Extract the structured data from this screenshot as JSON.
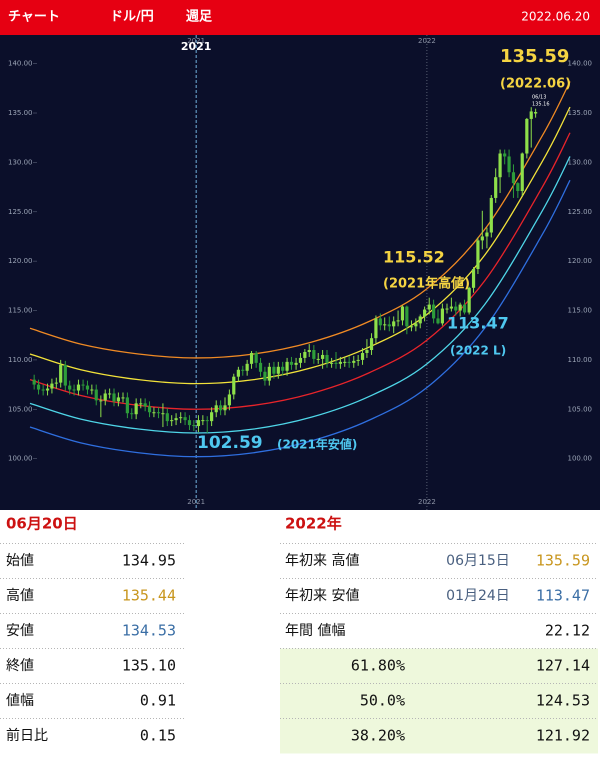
{
  "header": {
    "title": "チャート",
    "pair": "ドル/円",
    "period": "週足",
    "date": "2022.06.20"
  },
  "chart_data": {
    "type": "candlestick",
    "xlim": [
      2020.15,
      2022.75
    ],
    "ylim": [
      94.8,
      142.9
    ],
    "xticks": [
      2021,
      2022
    ],
    "yticks": [
      {
        "value": 100,
        "label": "100.00"
      },
      {
        "value": 105,
        "label": "105.00"
      },
      {
        "value": 110,
        "label": "110.00"
      },
      {
        "value": 115,
        "label": "115.00"
      },
      {
        "value": 120,
        "label": "120.00"
      },
      {
        "value": 125,
        "label": "125.00"
      },
      {
        "value": 130,
        "label": "130.00"
      },
      {
        "value": 135,
        "label": "135.00"
      },
      {
        "value": 140,
        "label": "140.00"
      }
    ],
    "up_color": "#8ee04a",
    "down_color": "#2e9d3a",
    "x": [
      2020.298,
      2020.317,
      2020.337,
      2020.356,
      2020.375,
      2020.394,
      2020.413,
      2020.433,
      2020.452,
      2020.471,
      2020.49,
      2020.51,
      2020.529,
      2020.548,
      2020.567,
      2020.587,
      2020.606,
      2020.625,
      2020.644,
      2020.663,
      2020.683,
      2020.702,
      2020.721,
      2020.74,
      2020.76,
      2020.779,
      2020.798,
      2020.817,
      2020.837,
      2020.856,
      2020.875,
      2020.894,
      2020.913,
      2020.933,
      2020.952,
      2020.971,
      2020.99,
      2021.01,
      2021.029,
      2021.048,
      2021.067,
      2021.087,
      2021.106,
      2021.125,
      2021.144,
      2021.163,
      2021.183,
      2021.202,
      2021.221,
      2021.24,
      2021.26,
      2021.279,
      2021.298,
      2021.317,
      2021.337,
      2021.356,
      2021.375,
      2021.394,
      2021.413,
      2021.433,
      2021.452,
      2021.471,
      2021.49,
      2021.51,
      2021.529,
      2021.548,
      2021.567,
      2021.587,
      2021.606,
      2021.625,
      2021.644,
      2021.663,
      2021.683,
      2021.702,
      2021.721,
      2021.74,
      2021.76,
      2021.779,
      2021.798,
      2021.817,
      2021.837,
      2021.856,
      2021.875,
      2021.894,
      2021.913,
      2021.933,
      2021.952,
      2021.971,
      2021.99,
      2022.01,
      2022.029,
      2022.048,
      2022.067,
      2022.087,
      2022.106,
      2022.125,
      2022.144,
      2022.163,
      2022.183,
      2022.202,
      2022.221,
      2022.24,
      2022.26,
      2022.279,
      2022.298,
      2022.317,
      2022.337,
      2022.356,
      2022.375,
      2022.394,
      2022.413,
      2022.433,
      2022.452,
      2022.471
    ],
    "open": [
      108.0,
      107.5,
      107.0,
      106.9,
      107.1,
      107.6,
      107.7,
      109.5,
      107.4,
      107.0,
      106.9,
      107.5,
      107.4,
      107.0,
      107.0,
      105.9,
      105.9,
      106.6,
      106.6,
      105.8,
      106.2,
      106.2,
      104.6,
      104.5,
      105.6,
      105.6,
      105.3,
      104.7,
      104.7,
      104.6,
      104.6,
      103.8,
      103.9,
      104.1,
      104.2,
      103.9,
      103.4,
      103.3,
      103.9,
      103.9,
      103.8,
      104.7,
      105.4,
      104.9,
      105.4,
      106.5,
      108.3,
      109.0,
      108.9,
      109.6,
      110.7,
      109.7,
      108.8,
      107.9,
      109.3,
      108.6,
      109.3,
      108.9,
      109.8,
      109.5,
      109.7,
      110.2,
      110.8,
      111.0,
      110.1,
      110.1,
      110.5,
      109.7,
      109.7,
      109.6,
      109.8,
      109.8,
      109.7,
      109.9,
      110.0,
      110.7,
      111.0,
      112.2,
      114.2,
      113.5,
      113.6,
      113.4,
      113.9,
      114.0,
      115.4,
      113.4,
      113.4,
      113.7,
      114.4,
      115.1,
      115.6,
      114.2,
      113.7,
      115.2,
      115.2,
      115.4,
      115.0,
      115.6,
      114.8,
      117.3,
      119.2,
      122.1,
      122.5,
      122.9,
      126.4,
      128.5,
      130.9,
      130.6,
      129.0,
      127.9,
      127.1,
      130.9,
      134.4,
      134.95
    ],
    "high": [
      108.5,
      108.0,
      107.5,
      107.6,
      108.1,
      108.2,
      110.0,
      109.9,
      107.9,
      107.5,
      108.0,
      108.0,
      107.9,
      107.5,
      107.5,
      106.4,
      107.0,
      107.1,
      107.1,
      106.7,
      106.7,
      106.7,
      105.1,
      106.1,
      106.1,
      106.1,
      105.8,
      105.2,
      105.2,
      105.6,
      105.1,
      104.4,
      104.6,
      104.7,
      104.7,
      104.4,
      103.9,
      104.4,
      104.4,
      104.3,
      105.2,
      105.9,
      105.9,
      106.2,
      107.0,
      108.6,
      109.3,
      109.4,
      110.0,
      110.9,
      110.9,
      110.2,
      109.3,
      109.7,
      109.8,
      109.8,
      109.8,
      110.2,
      110.3,
      110.2,
      110.7,
      111.1,
      111.6,
      111.5,
      110.7,
      111.0,
      111.0,
      110.2,
      110.8,
      110.3,
      110.3,
      110.4,
      110.4,
      110.5,
      111.2,
      112.1,
      112.7,
      114.5,
      114.7,
      114.3,
      114.4,
      114.4,
      115.0,
      115.52,
      115.5,
      114.0,
      114.2,
      114.6,
      115.4,
      116.3,
      116.1,
      115.1,
      115.7,
      115.7,
      116.3,
      115.9,
      115.8,
      116.1,
      117.4,
      119.4,
      122.4,
      125.1,
      123.4,
      126.7,
      129.4,
      131.3,
      131.3,
      131.3,
      129.8,
      128.0,
      131.0,
      134.5,
      135.59,
      135.44
    ],
    "low": [
      107.0,
      106.5,
      106.4,
      106.4,
      106.6,
      107.1,
      107.2,
      106.9,
      106.5,
      106.4,
      106.4,
      106.9,
      106.5,
      106.5,
      105.4,
      104.2,
      105.4,
      106.1,
      105.3,
      105.3,
      105.7,
      104.1,
      104.0,
      104.0,
      105.1,
      104.8,
      104.2,
      104.2,
      104.1,
      103.2,
      103.3,
      103.3,
      103.4,
      103.6,
      103.4,
      102.9,
      102.8,
      102.7,
      103.4,
      102.59,
      103.3,
      104.2,
      104.4,
      104.4,
      104.9,
      106.0,
      107.8,
      108.4,
      108.4,
      109.1,
      109.2,
      108.3,
      107.4,
      107.4,
      108.1,
      108.1,
      108.4,
      108.4,
      109.0,
      109.0,
      109.2,
      109.7,
      110.3,
      109.6,
      109.6,
      109.1,
      109.2,
      109.2,
      109.1,
      109.1,
      109.3,
      109.2,
      109.2,
      109.4,
      109.5,
      110.2,
      110.5,
      111.7,
      113.0,
      113.0,
      112.9,
      112.7,
      113.4,
      113.5,
      112.6,
      112.9,
      112.9,
      113.2,
      113.9,
      114.6,
      113.7,
      113.6,
      113.47,
      114.7,
      114.9,
      114.5,
      114.4,
      114.6,
      114.6,
      116.8,
      118.7,
      121.2,
      121.3,
      122.4,
      125.9,
      126.9,
      129.8,
      128.5,
      126.4,
      126.4,
      126.6,
      130.4,
      131.5,
      134.53
    ],
    "close": [
      107.5,
      107.0,
      106.9,
      107.1,
      107.6,
      107.7,
      109.5,
      107.4,
      107.0,
      106.9,
      107.5,
      107.4,
      107.0,
      107.0,
      105.9,
      105.9,
      106.6,
      106.6,
      105.8,
      106.2,
      106.2,
      104.6,
      104.5,
      105.6,
      105.6,
      105.3,
      104.7,
      104.7,
      104.6,
      104.6,
      103.8,
      103.9,
      104.1,
      104.2,
      103.9,
      103.4,
      103.3,
      103.9,
      103.9,
      103.8,
      104.7,
      105.4,
      104.9,
      105.4,
      106.5,
      108.3,
      109.0,
      108.9,
      109.6,
      110.7,
      109.7,
      108.8,
      107.9,
      109.3,
      108.6,
      109.3,
      108.9,
      109.8,
      109.5,
      109.7,
      110.2,
      110.8,
      111.0,
      110.1,
      110.1,
      110.5,
      109.7,
      109.7,
      109.6,
      109.8,
      109.8,
      109.7,
      109.9,
      110.0,
      110.7,
      111.0,
      112.2,
      114.2,
      113.5,
      113.6,
      113.4,
      113.9,
      114.0,
      115.4,
      113.4,
      113.4,
      113.7,
      114.4,
      115.1,
      115.6,
      114.2,
      113.7,
      115.2,
      115.2,
      115.4,
      115.0,
      115.6,
      114.8,
      117.3,
      119.2,
      122.1,
      122.5,
      122.9,
      126.4,
      128.5,
      130.9,
      130.6,
      129.0,
      127.9,
      127.1,
      130.9,
      134.4,
      135.16,
      135.1
    ],
    "bands": {
      "x": [
        2020.28,
        2020.5,
        2020.75,
        2021.0,
        2021.25,
        2021.5,
        2021.75,
        2022.0,
        2022.25,
        2022.5,
        2022.62
      ],
      "lines": [
        {
          "color": "#f08a24",
          "values": [
            113.2,
            111.6,
            110.6,
            110.2,
            110.6,
            111.8,
            113.9,
            117.2,
            123.2,
            132.7,
            138.2
          ]
        },
        {
          "color": "#f2e23a",
          "values": [
            110.6,
            109.0,
            108.0,
            107.6,
            108.0,
            109.2,
            111.3,
            114.6,
            120.6,
            130.1,
            135.6
          ]
        },
        {
          "color": "#e8242a",
          "values": [
            108.0,
            106.4,
            105.4,
            105.0,
            105.4,
            106.6,
            108.7,
            112.0,
            118.0,
            127.5,
            133.0
          ]
        },
        {
          "color": "#4fd6e8",
          "values": [
            105.6,
            104.0,
            103.0,
            102.6,
            103.0,
            104.2,
            106.3,
            109.6,
            115.6,
            125.1,
            130.6
          ]
        },
        {
          "color": "#2f6fe0",
          "values": [
            103.2,
            101.6,
            100.6,
            100.2,
            100.6,
            101.8,
            103.9,
            107.2,
            113.2,
            122.7,
            128.2
          ]
        }
      ]
    },
    "annotations": [
      {
        "text": "135.59",
        "color": "#f5d442"
      },
      {
        "text": "(2022.06)",
        "color": "#f5d442"
      },
      {
        "text": "115.52",
        "color": "#f5d442"
      },
      {
        "text": "(2021年高値)",
        "color": "#f5d442"
      },
      {
        "text": "113.47",
        "color": "#4fc8f0"
      },
      {
        "text": "(2022 L)",
        "color": "#4fc8f0"
      },
      {
        "text": "102.59",
        "color": "#4fc8f0"
      },
      {
        "text": "(2021年安値)",
        "color": "#4fc8f0"
      },
      {
        "text": "06/13",
        "color": "#ffffff"
      },
      {
        "text": "135.16",
        "color": "#ffffff"
      }
    ]
  },
  "left_table": {
    "title": "06月20日",
    "rows": [
      [
        "始値",
        "134.95"
      ],
      [
        "高値",
        "135.44"
      ],
      [
        "安値",
        "134.53"
      ],
      [
        "終値",
        "135.10"
      ],
      [
        "値幅",
        "0.91"
      ],
      [
        "前日比",
        "0.15"
      ]
    ]
  },
  "right_table": {
    "title": "2022年",
    "rows": [
      [
        "年初来 高値",
        "06月15日",
        "135.59"
      ],
      [
        "年初来 安値",
        "01月24日",
        "113.47"
      ],
      [
        "年間 値幅",
        "22.12"
      ],
      [
        "61.80%",
        "127.14"
      ],
      [
        "50.0%",
        "124.53"
      ],
      [
        "38.20%",
        "121.92"
      ]
    ]
  }
}
